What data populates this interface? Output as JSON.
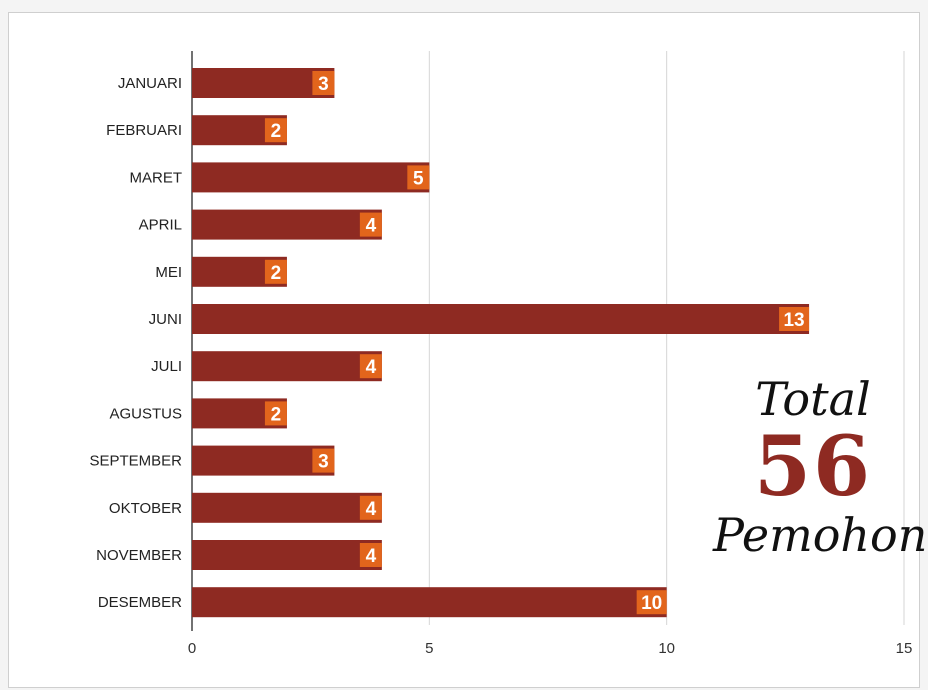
{
  "chart_data": {
    "type": "bar",
    "orientation": "horizontal",
    "categories": [
      "JANUARI",
      "FEBRUARI",
      "MARET",
      "APRIL",
      "MEI",
      "JUNI",
      "JULI",
      "AGUSTUS",
      "SEPTEMBER",
      "OKTOBER",
      "NOVEMBER",
      "DESEMBER"
    ],
    "values": [
      3,
      2,
      5,
      4,
      2,
      13,
      4,
      2,
      3,
      4,
      4,
      10
    ],
    "xlim": [
      0,
      15
    ],
    "xticks": [
      0,
      5,
      10,
      15
    ],
    "grid": "vertical",
    "colors": {
      "bar": "#8e2a22",
      "label_box": "#e2651c",
      "grid": "#d6d6d6",
      "accent": "#8e2a22"
    }
  },
  "annotation": {
    "word_top": "Total",
    "number": "56",
    "word_bottom": "Pemohon"
  }
}
